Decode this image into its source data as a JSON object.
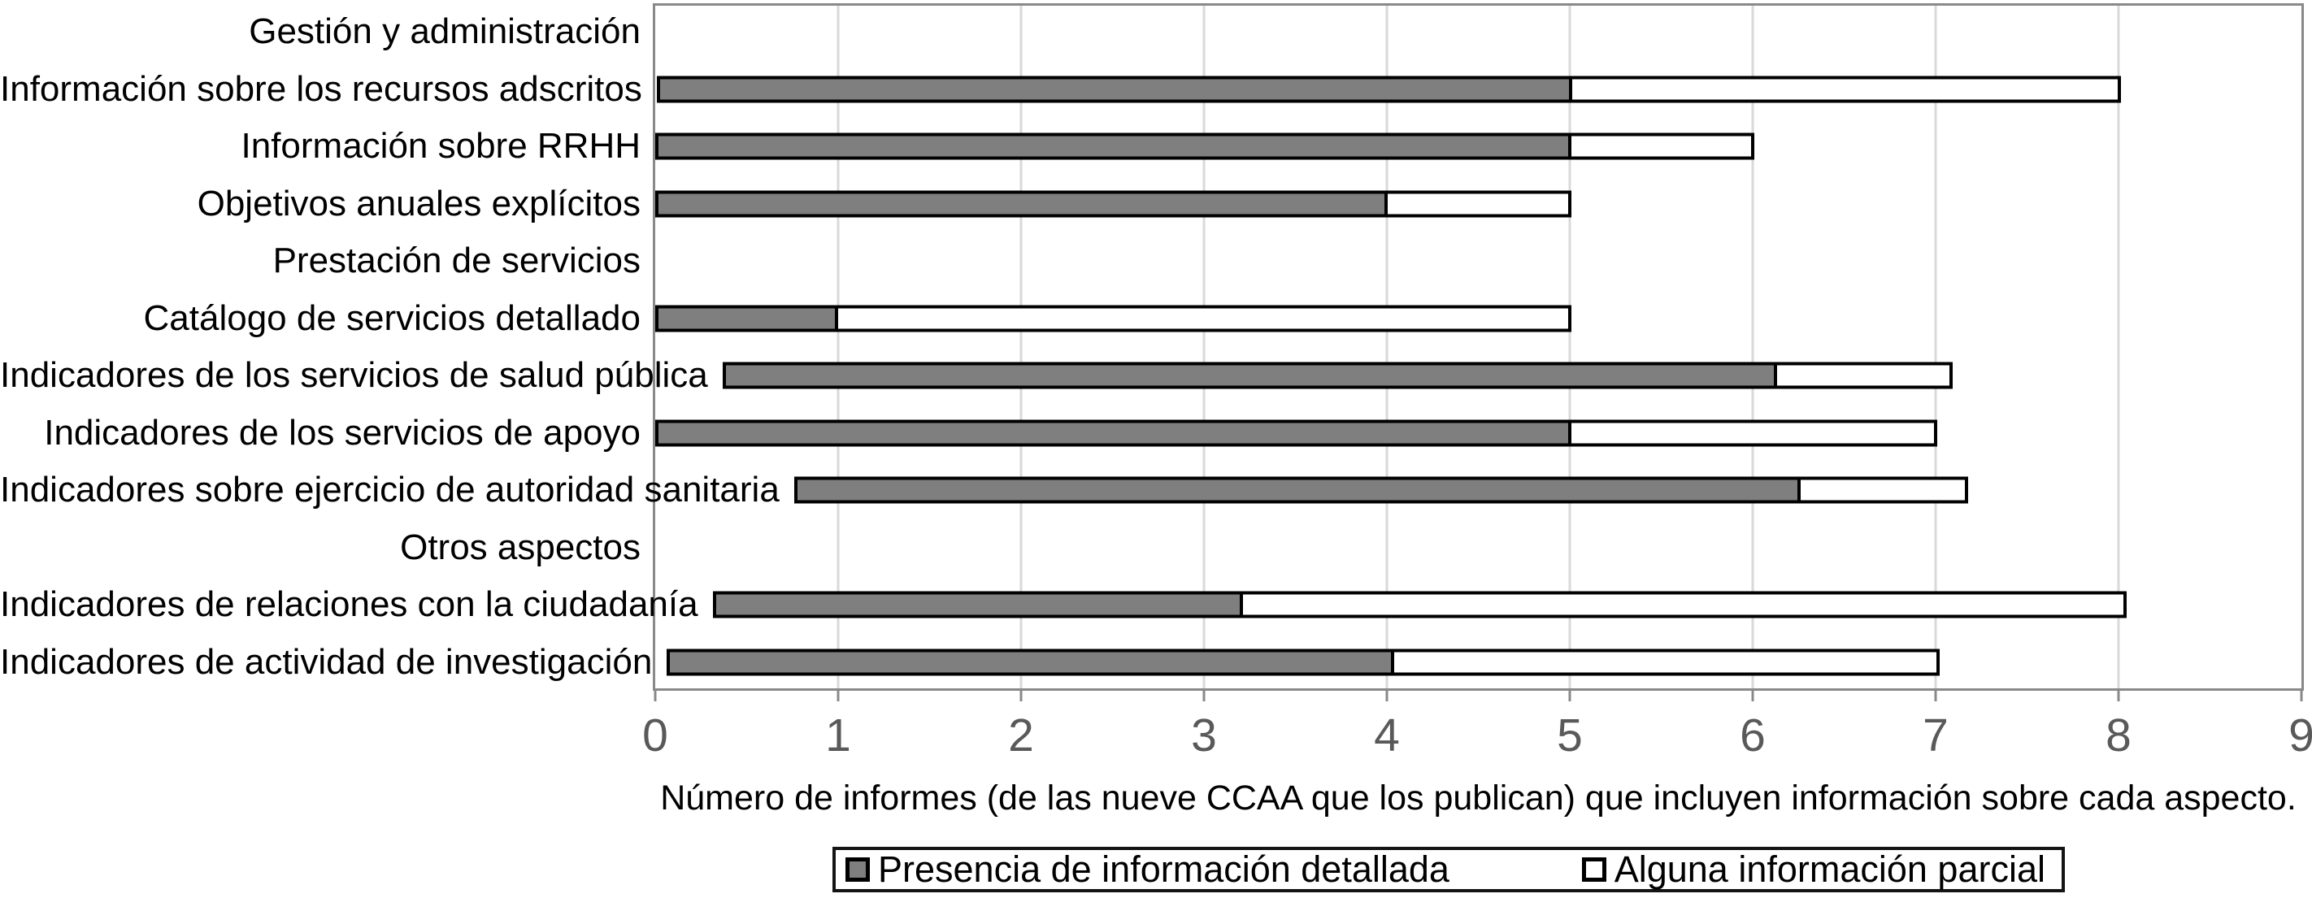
{
  "chart_data": {
    "type": "bar",
    "orientation": "horizontal",
    "title": "",
    "xlabel": "Número de informes (de las nueve CCAA que los publican) que incluyen información sobre cada aspecto.",
    "ylabel": "",
    "xlim": [
      0,
      9
    ],
    "xticks": [
      "0",
      "1",
      "2",
      "3",
      "4",
      "5",
      "6",
      "7",
      "8",
      "9"
    ],
    "grid": true,
    "legend_position": "bottom",
    "categories": [
      "Gestión y administración",
      "Información sobre los recursos adscritos",
      "Información sobre RRHH",
      "Objetivos anuales explícitos",
      "Prestación de servicios",
      "Catálogo de servicios detallado",
      "Indicadores de los servicios de salud pública",
      "Indicadores de los servicios de apoyo",
      "Indicadores sobre ejercicio de autoridad sanitaria",
      "Otros aspectos",
      "Indicadores de relaciones con la ciudadanía",
      "Indicadores de actividad de investigación"
    ],
    "series": [
      {
        "name": "Presencia de información detallada",
        "color": "#7f7f7f",
        "values": [
          0,
          5,
          5,
          4,
          0,
          1,
          6,
          5,
          6,
          0,
          3,
          4
        ]
      },
      {
        "name": "Alguna información parcial",
        "color": "#ffffff",
        "values": [
          0,
          3,
          1,
          1,
          0,
          4,
          1,
          2,
          1,
          0,
          5,
          3
        ]
      }
    ]
  },
  "colors": {
    "bar_detailed_fill": "#7f7f7f",
    "bar_partial_fill": "#ffffff",
    "bar_border": "#000000",
    "gridline": "#d9d9d9",
    "plot_border": "#898989",
    "tick_label": "#595959",
    "text": "#000000"
  }
}
